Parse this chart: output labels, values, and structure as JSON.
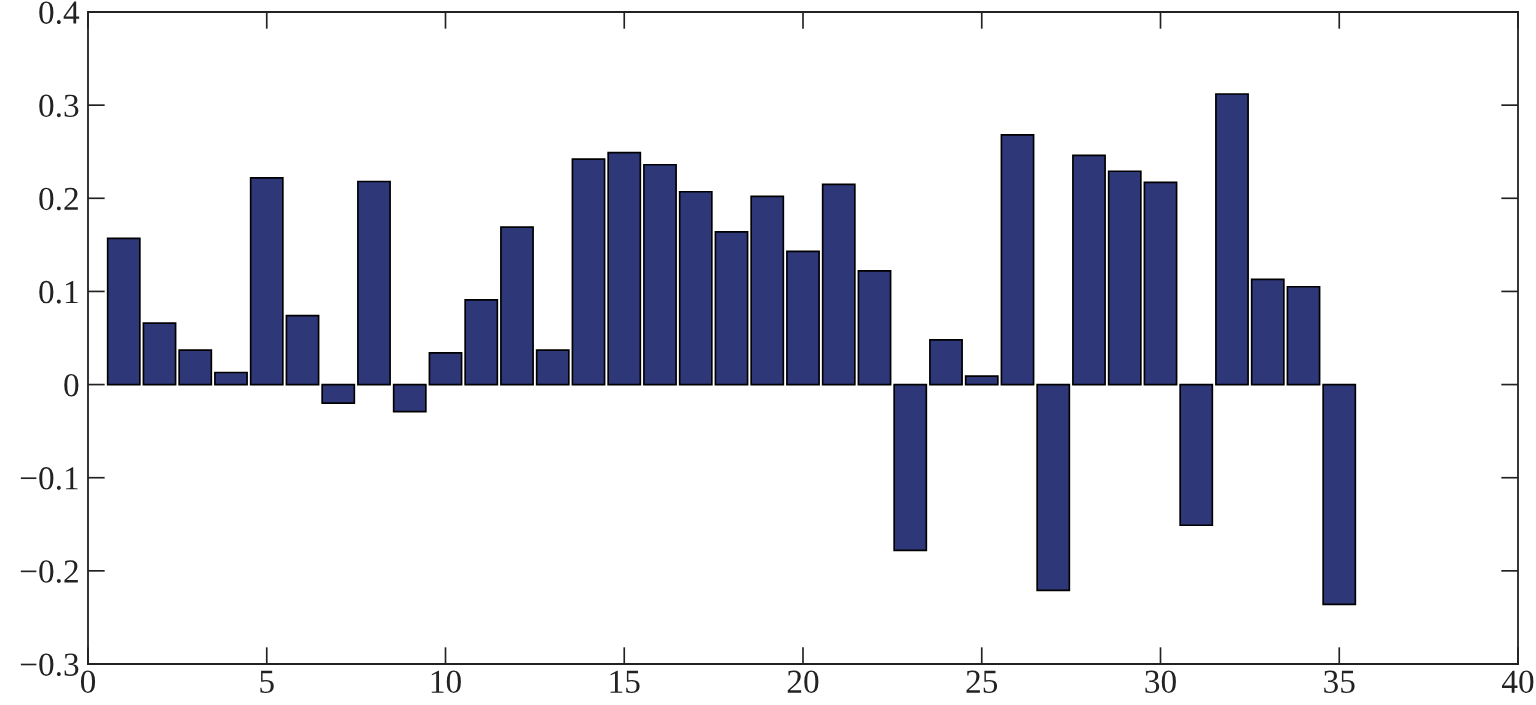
{
  "chart_data": {
    "type": "bar",
    "x": [
      1,
      2,
      3,
      4,
      5,
      6,
      7,
      8,
      9,
      10,
      11,
      12,
      13,
      14,
      15,
      16,
      17,
      18,
      19,
      20,
      21,
      22,
      23,
      24,
      25,
      26,
      27,
      28,
      29,
      30,
      31,
      32,
      33,
      34,
      35
    ],
    "values": [
      0.157,
      0.066,
      0.037,
      0.013,
      0.222,
      0.074,
      -0.02,
      0.218,
      -0.029,
      0.034,
      0.091,
      0.169,
      0.037,
      0.242,
      0.249,
      0.236,
      0.207,
      0.164,
      0.202,
      0.143,
      0.215,
      0.122,
      -0.178,
      0.048,
      0.009,
      0.268,
      -0.221,
      0.246,
      0.229,
      0.217,
      -0.151,
      0.312,
      0.113,
      0.105,
      -0.236
    ],
    "color": "#2e3778",
    "xlim": [
      0,
      40
    ],
    "xticks": [
      0,
      5,
      10,
      15,
      20,
      25,
      30,
      35,
      40
    ],
    "ylim": [
      -0.3,
      0.4
    ],
    "yticks": [
      {
        "value": -0.3,
        "label": "−0.3"
      },
      {
        "value": -0.2,
        "label": "−0.2"
      },
      {
        "value": -0.1,
        "label": "−0.1"
      },
      0,
      0.1,
      0.2,
      0.3,
      0.4
    ],
    "grid": false,
    "legend": false
  }
}
